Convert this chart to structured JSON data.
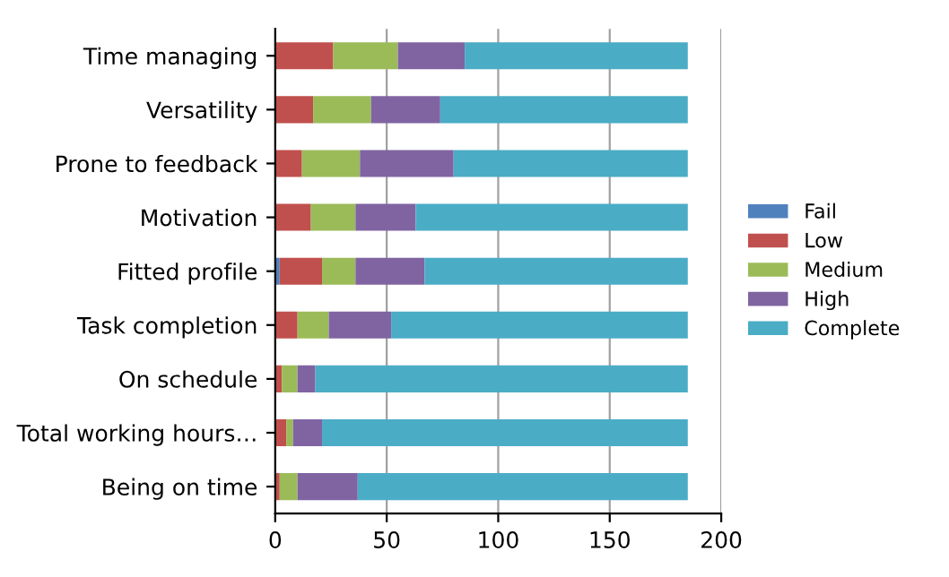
{
  "chart_data": {
    "type": "bar",
    "orientation": "horizontal",
    "stacked": true,
    "categories": [
      "Time managing",
      "Versatility",
      "Prone to feedback",
      "Motivation",
      "Fitted profile",
      "Task completion",
      "On schedule",
      "Total working hours…",
      "Being on time"
    ],
    "series": [
      {
        "name": "Fail",
        "color": "#4f81bd",
        "values": [
          0,
          0,
          0,
          0,
          2,
          0,
          0,
          0,
          0
        ]
      },
      {
        "name": "Low",
        "color": "#c0504d",
        "values": [
          26,
          17,
          12,
          16,
          19,
          10,
          3,
          5,
          2
        ]
      },
      {
        "name": "Medium",
        "color": "#9bbb59",
        "values": [
          29,
          26,
          26,
          20,
          15,
          14,
          7,
          3,
          8
        ]
      },
      {
        "name": "High",
        "color": "#8064a2",
        "values": [
          30,
          31,
          42,
          27,
          31,
          28,
          8,
          13,
          27
        ]
      },
      {
        "name": "Complete",
        "color": "#4bacc6",
        "values": [
          100,
          111,
          105,
          122,
          118,
          133,
          167,
          164,
          148
        ]
      }
    ],
    "xlim": [
      0,
      200
    ],
    "xticks": [
      0,
      50,
      100,
      150,
      200
    ],
    "grid": "x",
    "legend": "right"
  }
}
